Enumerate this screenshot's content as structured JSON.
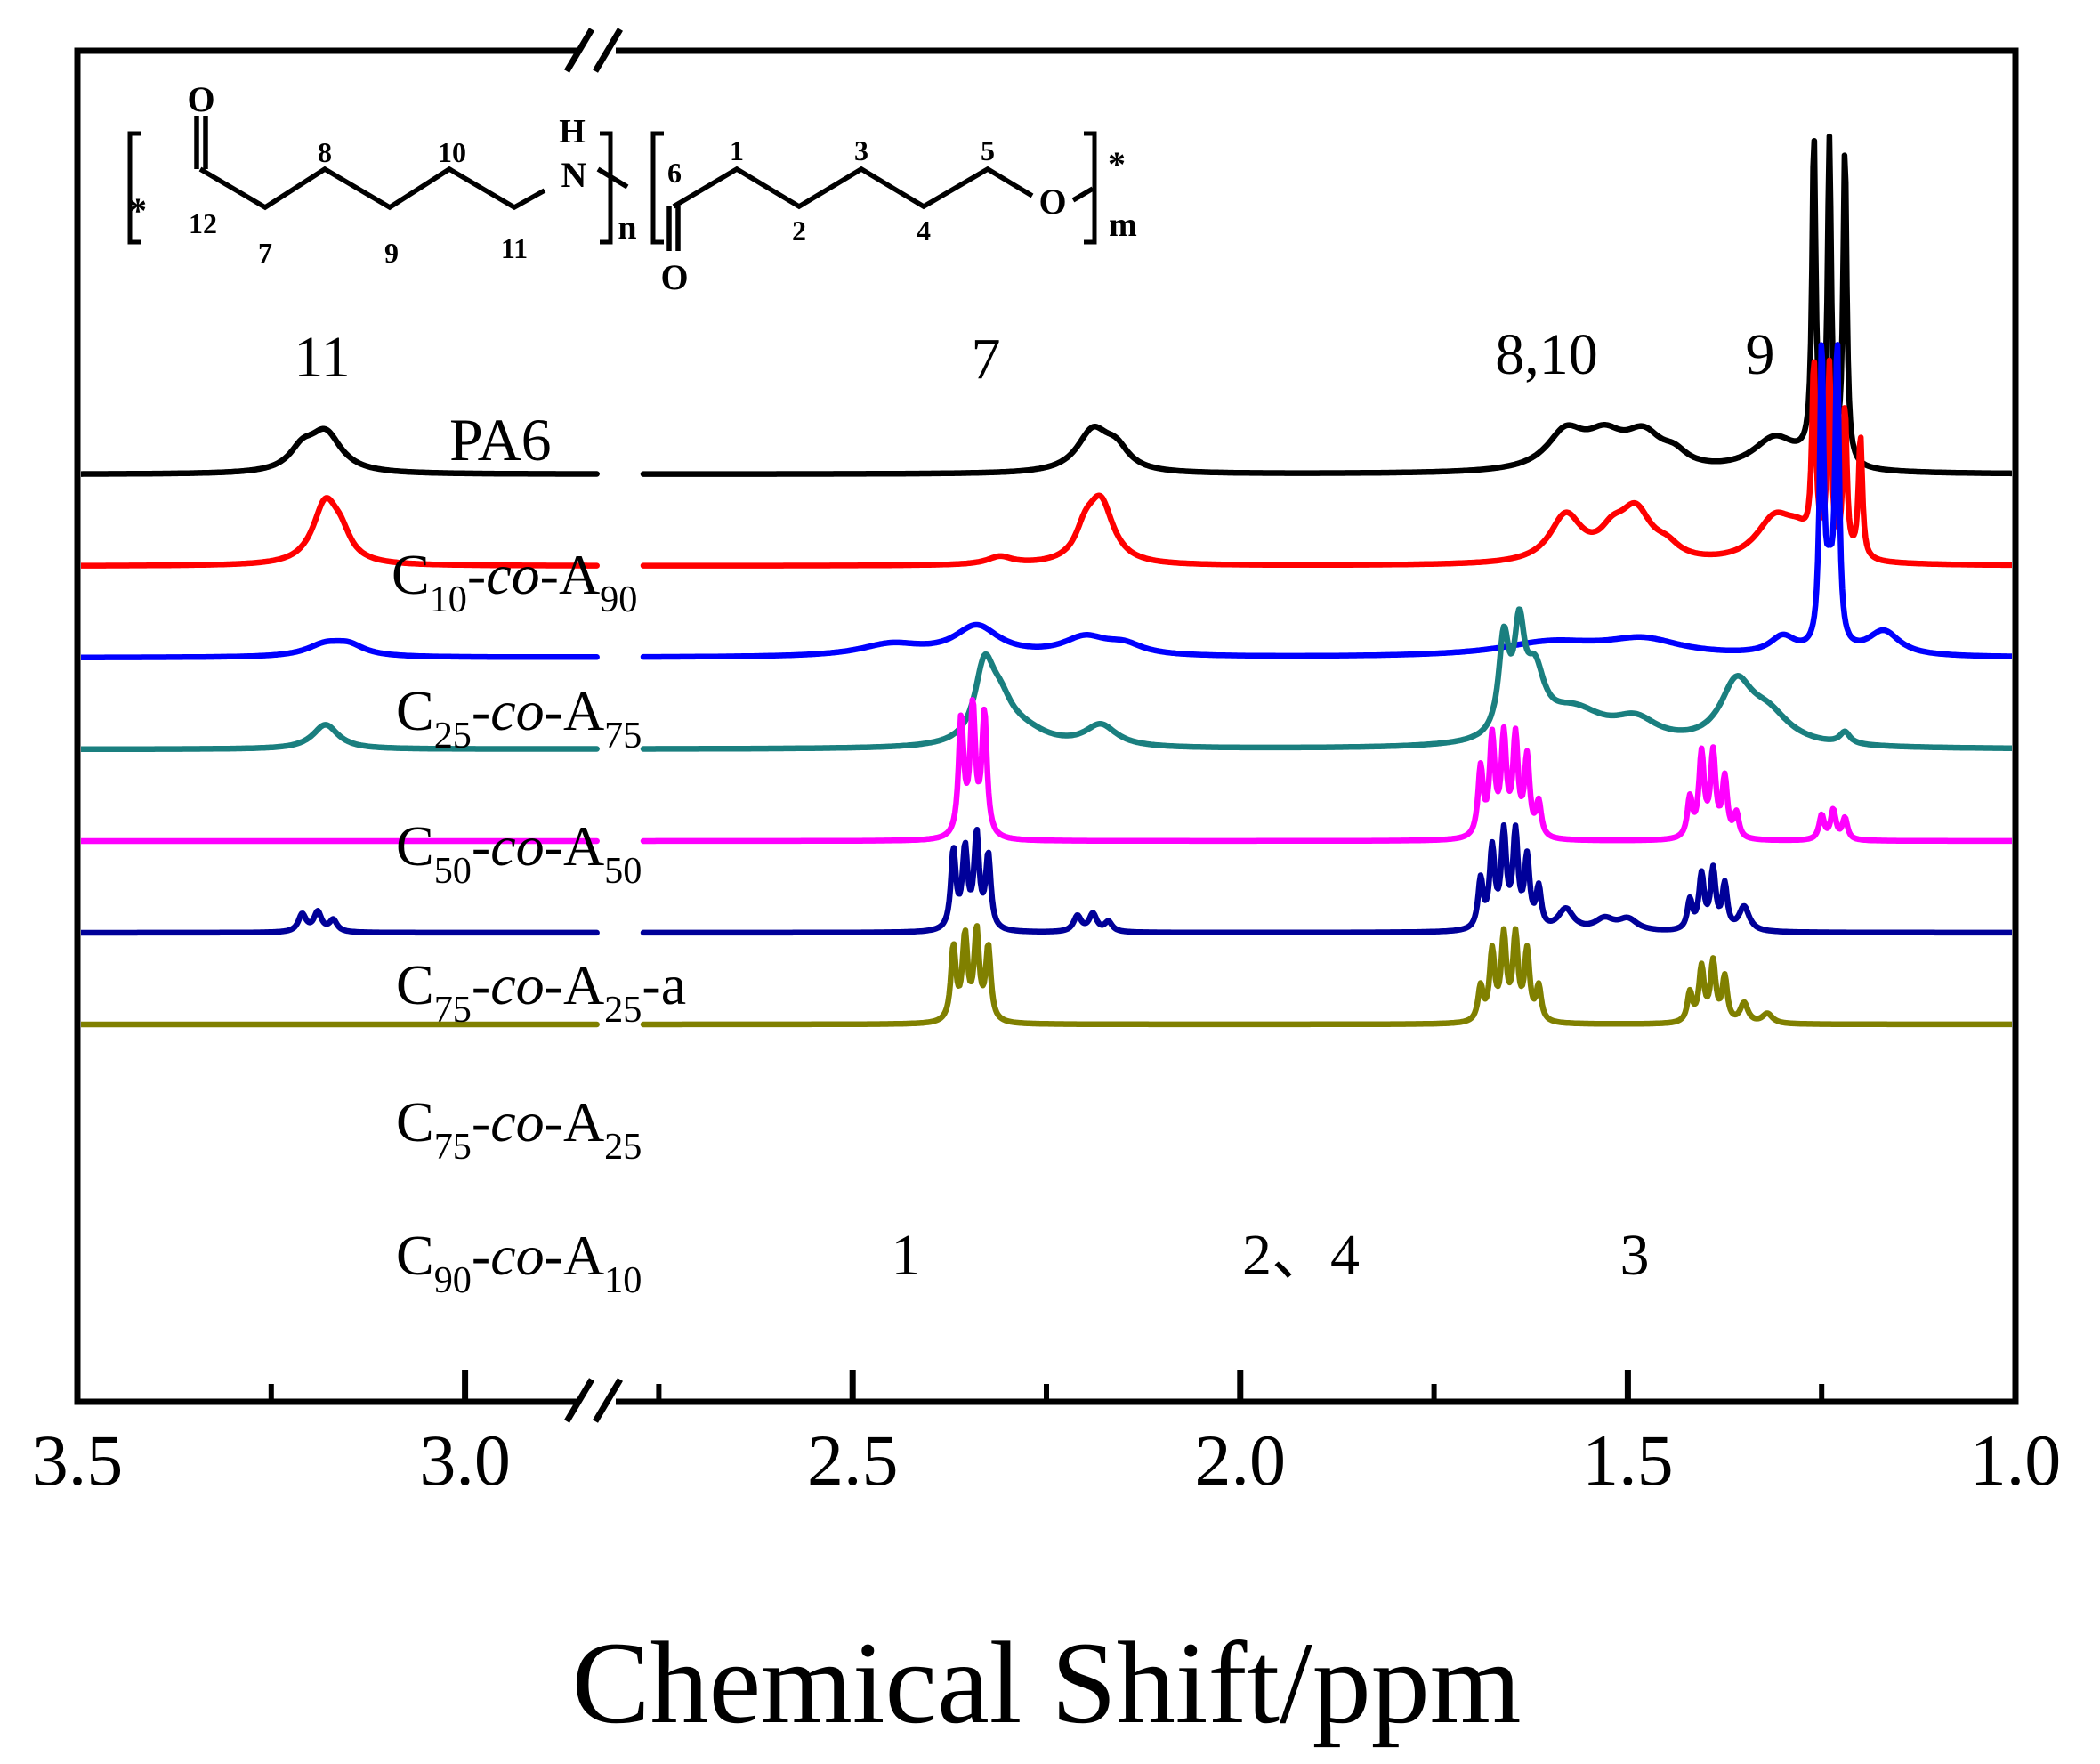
{
  "chart_data": {
    "type": "line",
    "subtype": "stacked 1H NMR spectra",
    "xlabel": "Chemical Shift/ppm",
    "ylabel": "",
    "x_axis_reversed": true,
    "xlim": [
      3.5,
      1.0
    ],
    "axis_break": [
      2.83,
      2.77
    ],
    "xticks": [
      "3.5",
      "3.0",
      "2.5",
      "2.0",
      "1.5",
      "1.0"
    ],
    "structure": {
      "atoms": [
        "O",
        "H",
        "N",
        "O",
        "O"
      ],
      "stars": [
        "*",
        "*"
      ],
      "subscripts": [
        "n",
        "m"
      ],
      "numbers": [
        "12",
        "7",
        "8",
        "9",
        "10",
        "11",
        "6",
        "1",
        "2",
        "3",
        "4",
        "5"
      ]
    },
    "peak_labels": [
      {
        "text": "11",
        "x": 3.17
      },
      {
        "text": "7",
        "x": 2.18
      },
      {
        "text": "8,10",
        "x": 1.53
      },
      {
        "text": "9",
        "x": 1.29
      },
      {
        "text": "1",
        "x": 2.28
      },
      {
        "text": "2、4",
        "x": 1.8
      },
      {
        "text": "3",
        "x": 1.43
      }
    ],
    "series": [
      {
        "name": "PA6",
        "label": {
          "base": "PA6",
          "s1": "",
          "mid": "",
          "s2": "",
          "tail": ""
        },
        "color": "#000000",
        "baseline": 0,
        "peaks": [
          [
            3.18,
            0.4,
            0.025
          ],
          [
            3.21,
            0.2,
            0.02
          ],
          [
            2.19,
            0.42,
            0.025
          ],
          [
            2.16,
            0.2,
            0.02
          ],
          [
            1.58,
            0.38,
            0.03
          ],
          [
            1.53,
            0.3,
            0.03
          ],
          [
            1.48,
            0.34,
            0.03
          ],
          [
            1.44,
            0.12,
            0.02
          ],
          [
            1.31,
            0.34,
            0.035
          ],
          [
            1.26,
            0.1,
            0.02
          ]
        ],
        "spikes": [
          [
            1.26,
            3.2,
            0.0028
          ],
          [
            1.24,
            3.2,
            0.0028
          ],
          [
            1.22,
            3.2,
            0.0028
          ]
        ]
      },
      {
        "name": "C10-co-A90",
        "label": {
          "base": "C",
          "s1": "10",
          "mid": "-co-A",
          "s2": "90",
          "tail": ""
        },
        "color": "#ff0000",
        "baseline": 1,
        "peaks": [
          [
            3.18,
            0.62,
            0.02
          ],
          [
            3.16,
            0.2,
            0.015
          ],
          [
            2.18,
            0.62,
            0.02
          ],
          [
            2.2,
            0.25,
            0.015
          ],
          [
            2.31,
            0.08,
            0.02
          ],
          [
            1.58,
            0.48,
            0.025
          ],
          [
            1.52,
            0.22,
            0.02
          ],
          [
            1.49,
            0.5,
            0.025
          ],
          [
            1.45,
            0.12,
            0.02
          ],
          [
            1.31,
            0.45,
            0.03
          ],
          [
            1.28,
            0.2,
            0.02
          ]
        ],
        "spikes": [
          [
            1.26,
            1.85,
            0.003
          ],
          [
            1.24,
            1.9,
            0.003
          ],
          [
            1.22,
            1.5,
            0.003
          ],
          [
            1.2,
            1.25,
            0.003
          ]
        ]
      },
      {
        "name": "C25-co-A75",
        "label": {
          "base": "C",
          "s1": "25",
          "mid": "-co-A",
          "s2": "75",
          "tail": ""
        },
        "color": "#0000ff",
        "baseline": 2,
        "peaks": [
          [
            3.18,
            0.12,
            0.03
          ],
          [
            3.15,
            0.1,
            0.025
          ],
          [
            2.34,
            0.3,
            0.035
          ],
          [
            2.45,
            0.12,
            0.05
          ],
          [
            2.2,
            0.18,
            0.035
          ],
          [
            2.15,
            0.1,
            0.03
          ],
          [
            1.6,
            0.14,
            0.08
          ],
          [
            1.48,
            0.16,
            0.06
          ],
          [
            1.3,
            0.18,
            0.02
          ],
          [
            1.17,
            0.25,
            0.025
          ]
        ],
        "spikes": [
          [
            1.25,
            3.0,
            0.003
          ],
          [
            1.23,
            3.0,
            0.003
          ],
          [
            1.24,
            0.6,
            0.006
          ]
        ]
      },
      {
        "name": "C50-co-A50",
        "label": {
          "base": "C",
          "s1": "50",
          "mid": "-co-A",
          "s2": "50",
          "tail": ""
        },
        "color": "#1a7f7f",
        "baseline": 3,
        "peaks": [
          [
            3.18,
            0.25,
            0.02
          ],
          [
            2.33,
            0.72,
            0.015
          ],
          [
            2.31,
            0.35,
            0.02
          ],
          [
            2.28,
            0.15,
            0.04
          ],
          [
            2.18,
            0.22,
            0.025
          ],
          [
            1.66,
            0.95,
            0.008
          ],
          [
            1.64,
            0.95,
            0.008
          ],
          [
            1.62,
            0.6,
            0.015
          ],
          [
            1.57,
            0.35,
            0.05
          ],
          [
            1.49,
            0.22,
            0.035
          ],
          [
            1.36,
            0.58,
            0.025
          ],
          [
            1.32,
            0.3,
            0.035
          ],
          [
            1.22,
            0.12,
            0.008
          ]
        ],
        "spikes": []
      },
      {
        "name": "C75-co-A25-a",
        "label": {
          "base": "C",
          "s1": "75",
          "mid": "-co-A",
          "s2": "25",
          "tail": "-a"
        },
        "color": "#ff00ff",
        "baseline": 4,
        "peaks": [
          [
            2.36,
            1.2,
            0.004
          ],
          [
            2.345,
            1.3,
            0.004
          ],
          [
            2.33,
            1.25,
            0.004
          ],
          [
            1.69,
            0.7,
            0.004
          ],
          [
            1.675,
            1.0,
            0.004
          ],
          [
            1.66,
            1.0,
            0.004
          ],
          [
            1.645,
            1.0,
            0.004
          ],
          [
            1.63,
            0.8,
            0.004
          ],
          [
            1.615,
            0.35,
            0.004
          ],
          [
            1.42,
            0.4,
            0.004
          ],
          [
            1.405,
            0.85,
            0.004
          ],
          [
            1.39,
            0.85,
            0.004
          ],
          [
            1.375,
            0.6,
            0.004
          ],
          [
            1.36,
            0.25,
            0.004
          ],
          [
            1.25,
            0.25,
            0.004
          ],
          [
            1.235,
            0.3,
            0.004
          ],
          [
            1.22,
            0.22,
            0.004
          ]
        ],
        "spikes": []
      },
      {
        "name": "C75-co-A25",
        "label": {
          "base": "C",
          "s1": "75",
          "mid": "-co-A",
          "s2": "25",
          "tail": ""
        },
        "color": "#000099",
        "baseline": 5,
        "peaks": [
          [
            3.21,
            0.18,
            0.006
          ],
          [
            3.19,
            0.2,
            0.006
          ],
          [
            3.17,
            0.12,
            0.006
          ],
          [
            2.37,
            0.8,
            0.004
          ],
          [
            2.355,
            0.8,
            0.004
          ],
          [
            2.34,
            0.95,
            0.004
          ],
          [
            2.325,
            0.75,
            0.004
          ],
          [
            2.21,
            0.16,
            0.006
          ],
          [
            2.19,
            0.18,
            0.006
          ],
          [
            2.17,
            0.1,
            0.006
          ],
          [
            1.69,
            0.5,
            0.004
          ],
          [
            1.675,
            0.8,
            0.004
          ],
          [
            1.66,
            0.95,
            0.004
          ],
          [
            1.645,
            0.95,
            0.004
          ],
          [
            1.63,
            0.7,
            0.004
          ],
          [
            1.615,
            0.4,
            0.004
          ],
          [
            1.58,
            0.22,
            0.012
          ],
          [
            1.53,
            0.12,
            0.015
          ],
          [
            1.5,
            0.12,
            0.015
          ],
          [
            1.42,
            0.3,
            0.004
          ],
          [
            1.405,
            0.55,
            0.004
          ],
          [
            1.39,
            0.6,
            0.004
          ],
          [
            1.375,
            0.45,
            0.004
          ],
          [
            1.35,
            0.25,
            0.008
          ]
        ],
        "spikes": []
      },
      {
        "name": "C90-co-A10",
        "label": {
          "base": "C",
          "s1": "90",
          "mid": "-co-A",
          "s2": "10",
          "tail": ""
        },
        "color": "#808000",
        "baseline": 6,
        "peaks": [
          [
            2.37,
            0.75,
            0.004
          ],
          [
            2.355,
            0.85,
            0.004
          ],
          [
            2.34,
            0.9,
            0.004
          ],
          [
            2.325,
            0.75,
            0.004
          ],
          [
            1.69,
            0.35,
            0.004
          ],
          [
            1.675,
            0.7,
            0.004
          ],
          [
            1.66,
            0.85,
            0.004
          ],
          [
            1.645,
            0.85,
            0.004
          ],
          [
            1.63,
            0.7,
            0.004
          ],
          [
            1.615,
            0.35,
            0.004
          ],
          [
            1.42,
            0.3,
            0.004
          ],
          [
            1.405,
            0.55,
            0.004
          ],
          [
            1.39,
            0.6,
            0.004
          ],
          [
            1.375,
            0.45,
            0.004
          ],
          [
            1.35,
            0.2,
            0.006
          ],
          [
            1.32,
            0.1,
            0.008
          ]
        ],
        "spikes": []
      }
    ]
  }
}
